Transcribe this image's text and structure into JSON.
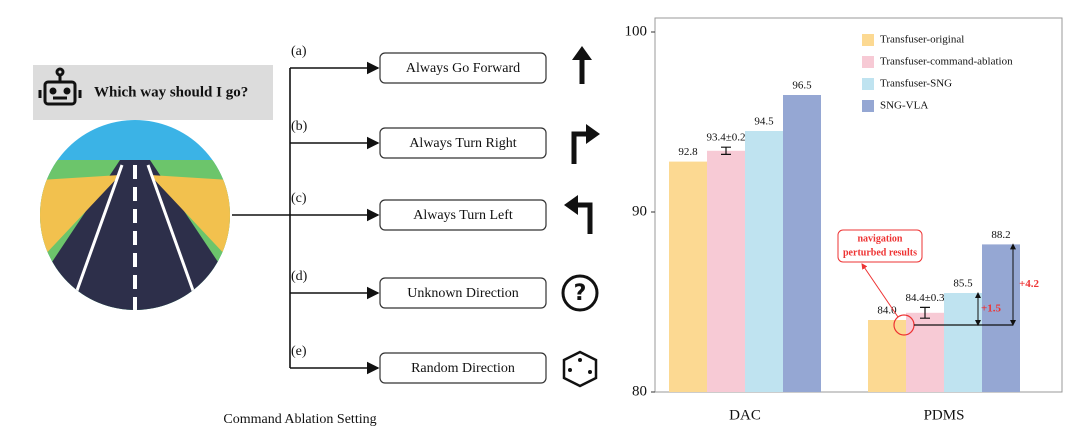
{
  "diagram": {
    "question": "Which way should I go?",
    "branches": [
      {
        "tag": "(a)",
        "label": "Always Go Forward"
      },
      {
        "tag": "(b)",
        "label": "Always Turn Right"
      },
      {
        "tag": "(c)",
        "label": "Always Turn Left"
      },
      {
        "tag": "(d)",
        "label": "Unknown Direction"
      },
      {
        "tag": "(e)",
        "label": "Random Direction"
      }
    ],
    "caption": "Command Ablation Setting"
  },
  "chart_data": {
    "type": "bar",
    "categories": [
      "DAC",
      "PDMS"
    ],
    "series": [
      {
        "name": "Transfuser-original",
        "color": "#fcd992",
        "values": [
          92.8,
          84.0
        ],
        "value_labels": [
          "92.8",
          "84.0"
        ]
      },
      {
        "name": "Transfuser-command-ablation",
        "color": "#f7cad5",
        "values": [
          93.4,
          84.4
        ],
        "errors": [
          0.2,
          0.3
        ],
        "value_labels": [
          "93.4±0.2",
          "84.4±0.3"
        ]
      },
      {
        "name": "Transfuser-SNG",
        "color": "#bfe3f0",
        "values": [
          94.5,
          85.5
        ],
        "value_labels": [
          "94.5",
          "85.5"
        ]
      },
      {
        "name": "SNG-VLA",
        "color": "#95a7d3",
        "values": [
          96.5,
          88.2
        ],
        "value_labels": [
          "96.5",
          "88.2"
        ]
      }
    ],
    "ylim": [
      80,
      100
    ],
    "yticks": [
      80,
      90,
      100
    ],
    "legend": "top-right",
    "annotations": {
      "note": [
        "navigation",
        "perturbed results"
      ],
      "gain_sng": "+1.5",
      "gain_vla": "+4.2"
    }
  }
}
